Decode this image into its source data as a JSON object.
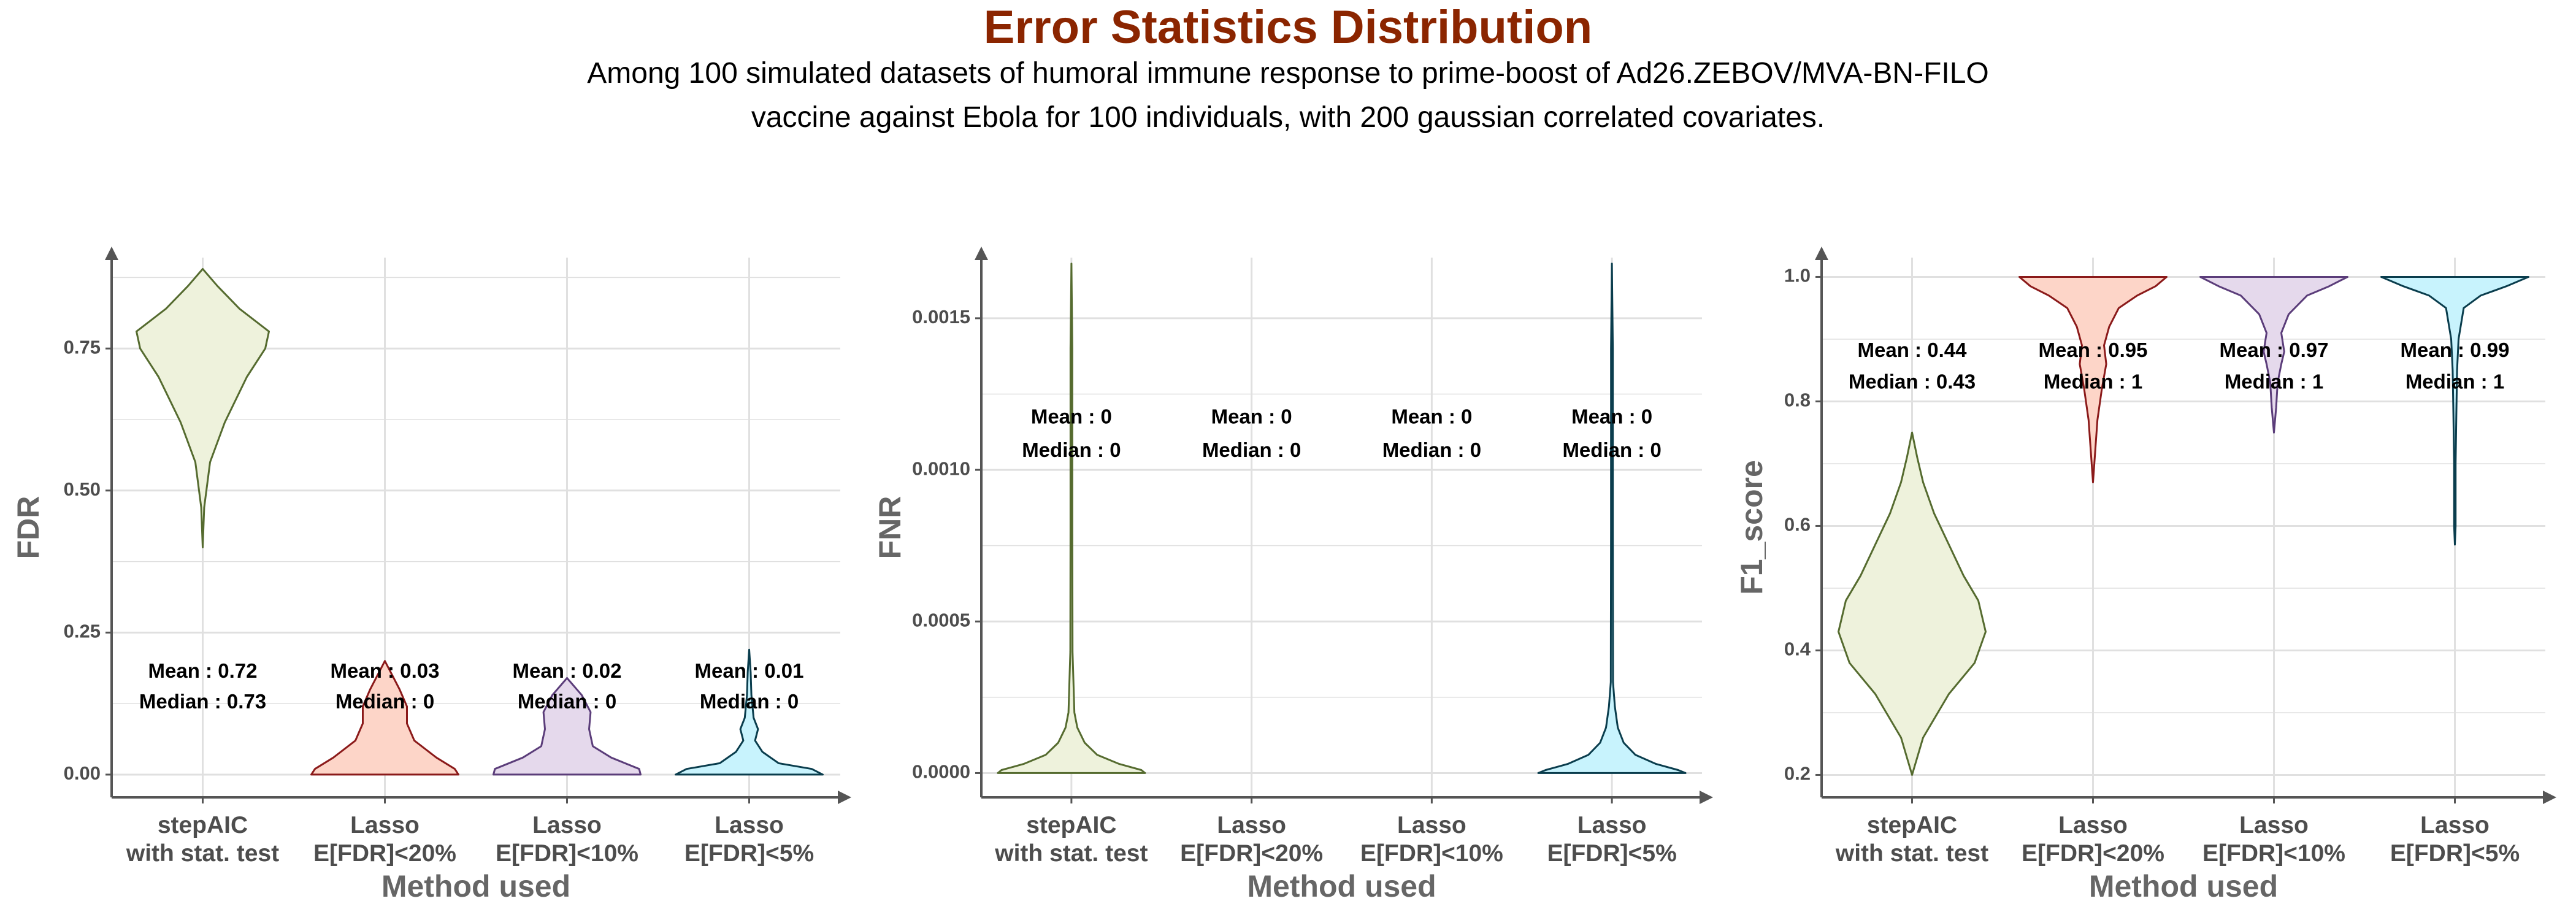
{
  "title": "Error Statistics Distribution",
  "subtitle_lines": [
    "Among 100 simulated datasets of humoral immune response to prime-boost of Ad26.ZEBOV/MVA-BN-FILO",
    "vaccine against Ebola for 100 individuals, with 200 gaussian correlated covariates."
  ],
  "colors": {
    "title": "#8B2500",
    "grid": "#e0e0e0",
    "axis": "#555555",
    "fills": [
      "#eef2dc",
      "#fdd5c8",
      "#e5d9ec",
      "#c8f3fd"
    ],
    "strokes": [
      "#556b2f",
      "#8b1a1a",
      "#5b3d7a",
      "#0a3d4d"
    ]
  },
  "chart_data": [
    {
      "type": "violin",
      "xlabel": "Method used",
      "ylabel": "FDR",
      "categories": [
        [
          "stepAIC",
          "with stat. test"
        ],
        [
          "Lasso",
          "E[FDR]<20%"
        ],
        [
          "Lasso",
          "E[FDR]<10%"
        ],
        [
          "Lasso",
          "E[FDR]<5%"
        ]
      ],
      "ylim": [
        -0.04,
        0.91
      ],
      "yticks": [
        0,
        0.25,
        0.5,
        0.75
      ],
      "ytick_labels": [
        "0.00",
        "0.25",
        "0.50",
        "0.75"
      ],
      "annotation_y": [
        0.18,
        0.126
      ],
      "series": [
        {
          "mean": "Mean : 0.72",
          "median": "Median : 0.73",
          "profile": [
            [
              0.4,
              0
            ],
            [
              0.47,
              0.02
            ],
            [
              0.55,
              0.1
            ],
            [
              0.62,
              0.3
            ],
            [
              0.7,
              0.6
            ],
            [
              0.75,
              0.85
            ],
            [
              0.78,
              0.9
            ],
            [
              0.82,
              0.5
            ],
            [
              0.86,
              0.2
            ],
            [
              0.89,
              0
            ]
          ]
        },
        {
          "mean": "Mean : 0.03",
          "median": "Median : 0",
          "profile": [
            [
              0,
              1
            ],
            [
              0.01,
              0.95
            ],
            [
              0.03,
              0.7
            ],
            [
              0.06,
              0.4
            ],
            [
              0.09,
              0.3
            ],
            [
              0.12,
              0.3
            ],
            [
              0.15,
              0.2
            ],
            [
              0.18,
              0.08
            ],
            [
              0.2,
              0
            ]
          ]
        },
        {
          "mean": "Mean : 0.02",
          "median": "Median : 0",
          "profile": [
            [
              0,
              1
            ],
            [
              0.01,
              0.98
            ],
            [
              0.03,
              0.6
            ],
            [
              0.05,
              0.35
            ],
            [
              0.08,
              0.3
            ],
            [
              0.11,
              0.32
            ],
            [
              0.14,
              0.2
            ],
            [
              0.17,
              0
            ]
          ]
        },
        {
          "mean": "Mean : 0.01",
          "median": "Median : 0",
          "profile": [
            [
              0,
              1
            ],
            [
              0.01,
              0.85
            ],
            [
              0.02,
              0.4
            ],
            [
              0.04,
              0.18
            ],
            [
              0.06,
              0.08
            ],
            [
              0.08,
              0.12
            ],
            [
              0.1,
              0.06
            ],
            [
              0.14,
              0.03
            ],
            [
              0.18,
              0.02
            ],
            [
              0.22,
              0
            ]
          ]
        }
      ]
    },
    {
      "type": "violin",
      "xlabel": "Method used",
      "ylabel": "FNR",
      "categories": [
        [
          "stepAIC",
          "with stat. test"
        ],
        [
          "Lasso",
          "E[FDR]<20%"
        ],
        [
          "Lasso",
          "E[FDR]<10%"
        ],
        [
          "Lasso",
          "E[FDR]<5%"
        ]
      ],
      "ylim": [
        -8e-05,
        0.0017
      ],
      "yticks": [
        0,
        0.0005,
        0.001,
        0.0015
      ],
      "ytick_labels": [
        "0.0000",
        "0.0005",
        "0.0010",
        "0.0015"
      ],
      "annotation_y": [
        0.00117,
        0.00106
      ],
      "series": [
        {
          "mean": "Mean : 0",
          "median": "Median : 0",
          "profile": [
            [
              0,
              1
            ],
            [
              1e-05,
              0.95
            ],
            [
              3e-05,
              0.65
            ],
            [
              6e-05,
              0.35
            ],
            [
              0.0001,
              0.18
            ],
            [
              0.00015,
              0.08
            ],
            [
              0.0002,
              0.04
            ],
            [
              0.0004,
              0.015
            ],
            [
              0.0008,
              0.012
            ],
            [
              0.0014,
              0.012
            ],
            [
              0.00168,
              0
            ]
          ]
        },
        {
          "mean": "Mean : 0",
          "median": "Median : 0",
          "profile": []
        },
        {
          "mean": "Mean : 0",
          "median": "Median : 0",
          "profile": []
        },
        {
          "mean": "Mean : 0",
          "median": "Median : 0",
          "profile": [
            [
              0,
              1
            ],
            [
              1e-05,
              0.9
            ],
            [
              3e-05,
              0.6
            ],
            [
              6e-05,
              0.32
            ],
            [
              0.0001,
              0.16
            ],
            [
              0.00015,
              0.08
            ],
            [
              0.00022,
              0.04
            ],
            [
              0.0003,
              0.015
            ],
            [
              0.0008,
              0.012
            ],
            [
              0.0014,
              0.012
            ],
            [
              0.00168,
              0
            ]
          ]
        }
      ]
    },
    {
      "type": "violin",
      "xlabel": "Method used",
      "ylabel": "F1_score",
      "categories": [
        [
          "stepAIC",
          "with stat. test"
        ],
        [
          "Lasso",
          "E[FDR]<20%"
        ],
        [
          "Lasso",
          "E[FDR]<10%"
        ],
        [
          "Lasso",
          "E[FDR]<5%"
        ]
      ],
      "ylim": [
        0.164,
        1.031
      ],
      "yticks": [
        0.2,
        0.4,
        0.6,
        0.8,
        1.0
      ],
      "ytick_labels": [
        "0.2",
        "0.4",
        "0.6",
        "0.8",
        "1.0"
      ],
      "annotation_y": [
        0.88,
        0.829
      ],
      "series": [
        {
          "mean": "Mean : 0.44",
          "median": "Median : 0.43",
          "profile": [
            [
              0.2,
              0
            ],
            [
              0.26,
              0.15
            ],
            [
              0.33,
              0.5
            ],
            [
              0.38,
              0.85
            ],
            [
              0.43,
              1
            ],
            [
              0.48,
              0.9
            ],
            [
              0.52,
              0.7
            ],
            [
              0.57,
              0.5
            ],
            [
              0.62,
              0.3
            ],
            [
              0.67,
              0.15
            ],
            [
              0.71,
              0.07
            ],
            [
              0.75,
              0
            ]
          ]
        },
        {
          "mean": "Mean : 0.95",
          "median": "Median : 1",
          "profile": [
            [
              0.67,
              0
            ],
            [
              0.72,
              0.03
            ],
            [
              0.77,
              0.06
            ],
            [
              0.82,
              0.12
            ],
            [
              0.86,
              0.18
            ],
            [
              0.89,
              0.15
            ],
            [
              0.92,
              0.22
            ],
            [
              0.95,
              0.35
            ],
            [
              0.97,
              0.6
            ],
            [
              0.985,
              0.85
            ],
            [
              1.0,
              1
            ]
          ]
        },
        {
          "mean": "Mean : 0.97",
          "median": "Median : 1",
          "profile": [
            [
              0.75,
              0
            ],
            [
              0.79,
              0.03
            ],
            [
              0.83,
              0.05
            ],
            [
              0.86,
              0.1
            ],
            [
              0.88,
              0.14
            ],
            [
              0.91,
              0.1
            ],
            [
              0.94,
              0.2
            ],
            [
              0.97,
              0.45
            ],
            [
              0.985,
              0.75
            ],
            [
              1.0,
              1
            ]
          ]
        },
        {
          "mean": "Mean : 0.99",
          "median": "Median : 1",
          "profile": [
            [
              0.57,
              0
            ],
            [
              0.6,
              0.01
            ],
            [
              0.7,
              0.01
            ],
            [
              0.78,
              0.02
            ],
            [
              0.85,
              0.03
            ],
            [
              0.9,
              0.05
            ],
            [
              0.95,
              0.12
            ],
            [
              0.97,
              0.35
            ],
            [
              0.985,
              0.7
            ],
            [
              1.0,
              1
            ]
          ]
        }
      ]
    }
  ]
}
